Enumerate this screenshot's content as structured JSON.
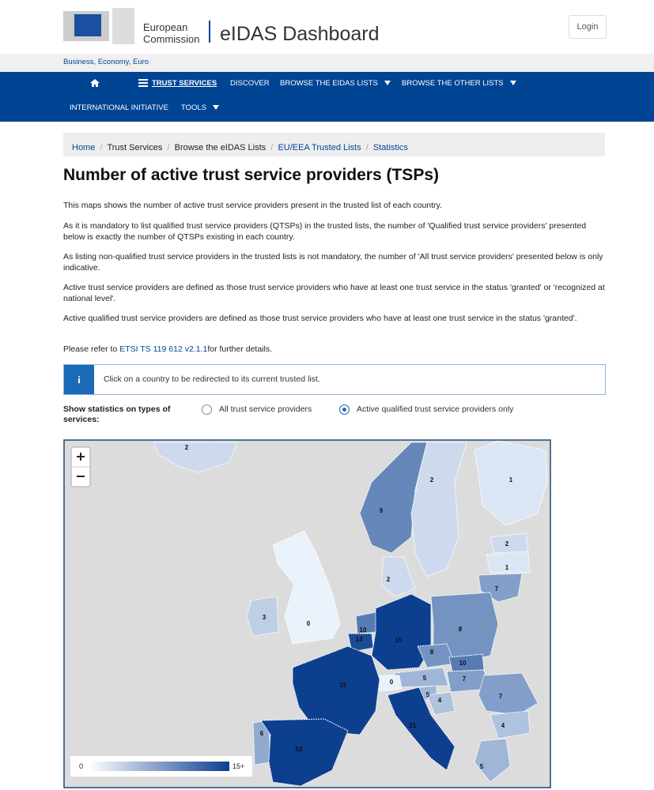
{
  "header": {
    "logo_line1": "European",
    "logo_line2": "Commission",
    "site_title": "eIDAS Dashboard",
    "login": "Login",
    "sub_bar": "Business, Economy, Euro"
  },
  "nav": {
    "items": [
      "TRUST SERVICES",
      "DISCOVER",
      "BROWSE THE EIDAS LISTS",
      "BROWSE THE OTHER LISTS",
      "INTERNATIONAL INITIATIVE",
      "TOOLS"
    ]
  },
  "breadcrumb": [
    "Home",
    "Trust Services",
    "Browse the eIDAS Lists",
    "EU/EEA Trusted Lists",
    "Statistics"
  ],
  "title": "Number of active trust service providers (TSPs)",
  "paragraphs": [
    "This maps shows the number of active trust service providers present in the trusted list of each country.",
    "As it is mandatory to list qualified trust service providers (QTSPs) in the trusted lists, the number of 'Qualified trust service providers' presented below is exactly the number of QTSPs existing in each country.",
    "As listing non-qualified trust service providers in the trusted lists is not mandatory, the number of 'All trust service providers' presented below is only indicative.",
    "Active trust service providers are defined as those trust service providers who have at least one trust service in the status 'granted' or 'recognized at national level'.",
    "Active qualified trust service providers are defined as those trust service providers who have at least one trust service in the status 'granted'."
  ],
  "reference": {
    "before": "Please refer to ",
    "link": "ETSI TS 119 612 v2.1.1",
    "after": "for further details."
  },
  "info": "Click on a country to be redirected to its current trusted list.",
  "filter": {
    "label": "Show statistics on types of services:",
    "options": [
      "All trust service providers",
      "Active qualified trust service providers only"
    ],
    "selected": 1
  },
  "map": {
    "regions": [
      {
        "value": 2
      },
      {
        "value": 9
      },
      {
        "value": 2
      },
      {
        "value": 1
      },
      {
        "value": 2
      },
      {
        "value": 1
      },
      {
        "value": 7
      },
      {
        "value": 2
      },
      {
        "value": 3
      },
      {
        "value": 0
      },
      {
        "value": 10
      },
      {
        "value": 14
      },
      {
        "value": 15
      },
      {
        "value": 8
      },
      {
        "value": 8
      },
      {
        "value": 10
      },
      {
        "value": 7
      },
      {
        "value": 5
      },
      {
        "value": 0
      },
      {
        "value": 31
      },
      {
        "value": 5
      },
      {
        "value": 4
      },
      {
        "value": 7
      },
      {
        "value": 21
      },
      {
        "value": 4
      },
      {
        "value": 6
      },
      {
        "value": 52
      },
      {
        "value": 5
      }
    ],
    "legend": [
      0,
      {
        "value": 15,
        "label": "15+"
      }
    ]
  }
}
